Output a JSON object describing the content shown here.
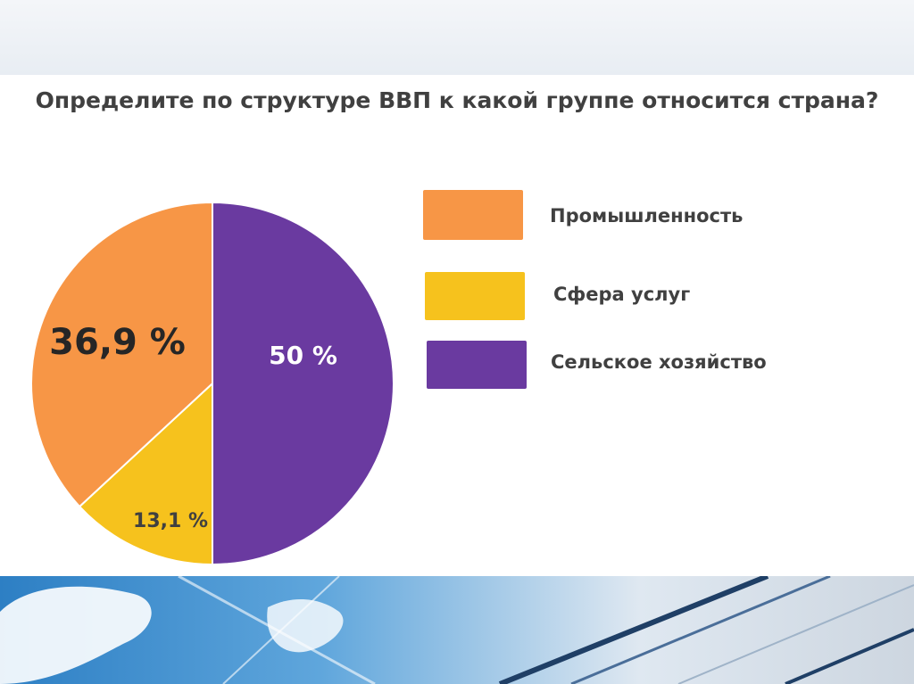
{
  "chart_data": {
    "type": "pie",
    "title": "Определите по структуре ВВП к какой группе относится страна?",
    "slices": [
      {
        "label": "Промышленность",
        "value": 36.9,
        "value_label": "36,9 %",
        "color": "#f79646"
      },
      {
        "label": "Сфера услуг",
        "value": 13.1,
        "value_label": "13,1 %",
        "color": "#f6c21d"
      },
      {
        "label": "Сельское хозяйство",
        "value": 50,
        "value_label": "50 %",
        "color": "#6a3aa0"
      }
    ],
    "legend_position": "right"
  }
}
